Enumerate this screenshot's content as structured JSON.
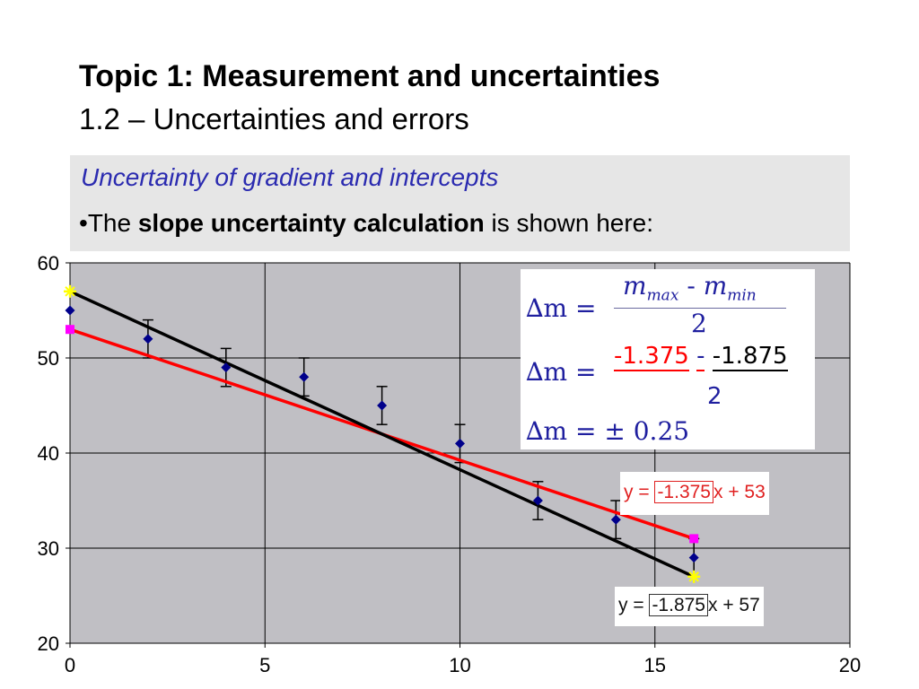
{
  "slide": {
    "title": "Topic 1: Measurement and uncertainties",
    "subtitle": "1.2 – Uncertainties and errors"
  },
  "box": {
    "heading": "Uncertainty of gradient and intercepts",
    "bullet": "•",
    "text_before": "The ",
    "text_bold": "slope uncertainty calculation",
    "text_after": " is shown here:"
  },
  "formula": {
    "line1_lhs": "∆m =",
    "line1_num_m": "m",
    "line1_num_max": "max",
    "line1_num_minus": "-",
    "line1_num_m2": "m",
    "line1_num_min": "min",
    "line1_den": "2",
    "line2_lhs": "∆m =",
    "line2_num_red": "-1.375",
    "line2_minus": "-",
    "line2_num_black": "-1.875",
    "line2_den": "2",
    "line3": "∆m = ± 0.25"
  },
  "equations": {
    "red_prefix": "y = ",
    "red_slope": "-1.375",
    "red_suffix": "x + 53",
    "black_prefix": "y = ",
    "black_slope": "-1.875",
    "black_suffix": "x + 57"
  },
  "colors": {
    "plot_bg": "#c0bfc4",
    "point": "#00008b",
    "red_line": "#ff0000",
    "black_line": "#000000",
    "magenta_marker": "#ff00ff",
    "yellow_marker": "#ffff00",
    "heading": "#2b2bb0"
  },
  "chart_data": {
    "type": "scatter",
    "xlim": [
      0,
      20
    ],
    "ylim": [
      20,
      60
    ],
    "xticks": [
      0,
      5,
      10,
      15,
      20
    ],
    "yticks": [
      20,
      30,
      40,
      50,
      60
    ],
    "grid": true,
    "points": [
      {
        "x": 0,
        "y": 55,
        "err": 0
      },
      {
        "x": 2,
        "y": 52,
        "err": 2
      },
      {
        "x": 4,
        "y": 49,
        "err": 2
      },
      {
        "x": 6,
        "y": 48,
        "err": 2
      },
      {
        "x": 8,
        "y": 45,
        "err": 2
      },
      {
        "x": 10,
        "y": 41,
        "err": 2
      },
      {
        "x": 12,
        "y": 35,
        "err": 2
      },
      {
        "x": 14,
        "y": 33,
        "err": 2
      },
      {
        "x": 16,
        "y": 29,
        "err": 2
      }
    ],
    "lines": [
      {
        "color": "#ff0000",
        "slope": -1.375,
        "intercept": 53,
        "x": [
          0,
          16
        ],
        "end_marker_color": "#ff00ff",
        "end_marker": "square"
      },
      {
        "color": "#000000",
        "slope": -1.875,
        "intercept": 57,
        "x": [
          0,
          16
        ],
        "end_marker_color": "#ffff00",
        "end_marker": "star"
      }
    ]
  }
}
